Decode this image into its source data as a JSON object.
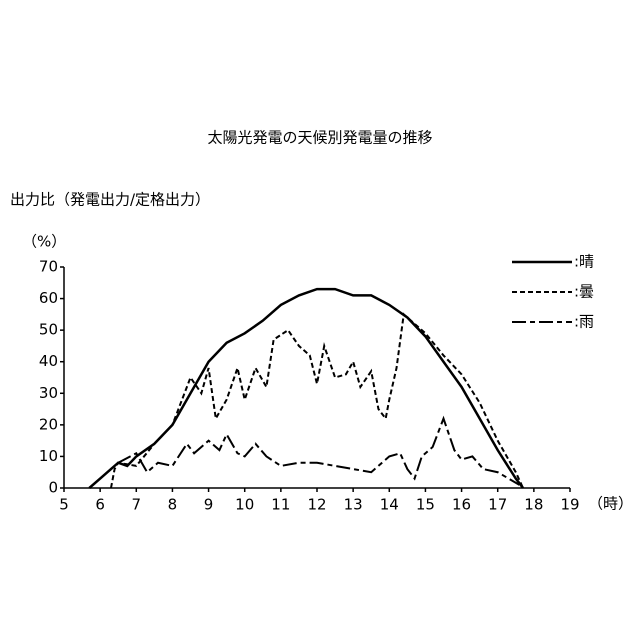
{
  "chart_data": {
    "type": "line",
    "title": "太陽光発電の天候別発電量の推移",
    "y_label": "出力比（発電出力/定格出力）",
    "y_unit": "（%）",
    "x_label": "（時）",
    "xlim": [
      5,
      19
    ],
    "xticks": [
      5,
      6,
      7,
      8,
      9,
      10,
      11,
      12,
      13,
      14,
      15,
      16,
      17,
      18,
      19
    ],
    "ylim": [
      0,
      70
    ],
    "yticks": [
      0,
      10,
      20,
      30,
      40,
      50,
      60,
      70
    ],
    "legend": "top-right",
    "series": [
      {
        "name": ":晴",
        "color": "#000000",
        "line_style": "solid",
        "x": [
          5.7,
          6.0,
          6.3,
          6.5,
          6.75,
          7,
          7.5,
          8,
          8.5,
          9,
          9.5,
          10,
          10.5,
          11,
          11.5,
          12,
          12.5,
          13,
          13.5,
          14,
          14.5,
          15,
          15.5,
          16,
          16.5,
          17,
          17.5,
          17.7
        ],
        "values": [
          0,
          3,
          6,
          8,
          7,
          10,
          14,
          20,
          30,
          40,
          46,
          49,
          53,
          58,
          61,
          63,
          63,
          61,
          61,
          58,
          54,
          48,
          40,
          32,
          22,
          12,
          3,
          0
        ]
      },
      {
        "name": ":曇",
        "color": "#000000",
        "line_style": "dashed",
        "x": [
          6.3,
          6.4,
          6.5,
          7,
          7.5,
          8,
          8.5,
          8.8,
          9,
          9.2,
          9.5,
          9.8,
          10,
          10.3,
          10.6,
          10.8,
          11.2,
          11.5,
          11.8,
          12,
          12.2,
          12.5,
          12.8,
          13,
          13.2,
          13.5,
          13.7,
          13.9,
          14,
          14.2,
          14.4,
          14.7,
          15,
          15.5,
          16,
          16.5,
          17,
          17.5,
          17.7
        ],
        "values": [
          0,
          6,
          8,
          7,
          14,
          20,
          35,
          30,
          38,
          22,
          28,
          38,
          28,
          38,
          32,
          47,
          50,
          45,
          42,
          33,
          45,
          35,
          36,
          40,
          32,
          37,
          25,
          22,
          28,
          38,
          55,
          52,
          49,
          42,
          36,
          27,
          15,
          5,
          0
        ]
      },
      {
        "name": ":雨",
        "color": "#000000",
        "line_style": "dashdot",
        "x": [
          6.5,
          7,
          7.3,
          7.6,
          8,
          8.4,
          8.6,
          9,
          9.3,
          9.5,
          9.8,
          10,
          10.3,
          10.6,
          11,
          11.5,
          12,
          12.5,
          13,
          13.5,
          14,
          14.3,
          14.5,
          14.7,
          14.9,
          15.2,
          15.5,
          15.8,
          16,
          16.3,
          16.6,
          17,
          17.3,
          17.6
        ],
        "values": [
          8,
          11,
          5,
          8,
          7,
          14,
          11,
          15,
          12,
          17,
          11,
          10,
          14,
          10,
          7,
          8,
          8,
          7,
          6,
          5,
          10,
          11,
          6,
          3,
          10,
          13,
          22,
          12,
          9,
          10,
          6,
          5,
          3,
          1
        ]
      }
    ]
  }
}
